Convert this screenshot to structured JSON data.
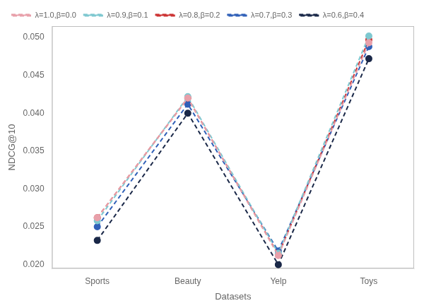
{
  "chart_data": {
    "type": "line",
    "categories": [
      "Sports",
      "Beauty",
      "Yelp",
      "Toys"
    ],
    "series": [
      {
        "name": "λ=1.0,β=0.0",
        "color": "#e8a0aa",
        "values": [
          0.0262,
          0.042,
          0.0212,
          0.0493
        ]
      },
      {
        "name": "λ=0.9,β=0.1",
        "color": "#7ec8d0",
        "values": [
          0.0258,
          0.0422,
          0.0215,
          0.0502
        ]
      },
      {
        "name": "λ=0.8,β=0.2",
        "color": "#cc3333",
        "values": [
          0.0262,
          0.042,
          0.0213,
          0.0497
        ]
      },
      {
        "name": "λ=0.7,β=0.3",
        "color": "#3060b8",
        "values": [
          0.025,
          0.0412,
          0.0218,
          0.0488
        ]
      },
      {
        "name": "λ=0.6,β=0.4",
        "color": "#1a2848",
        "values": [
          0.0232,
          0.04,
          0.02,
          0.0472
        ]
      }
    ],
    "xlabel": "Datasets",
    "ylabel": "NDCG@10",
    "ylim": [
      0.0195,
      0.0515
    ],
    "yticks": [
      {
        "value": 0.02,
        "label": "0.020"
      },
      0.025,
      {
        "value": 0.03,
        "label": "0.030"
      },
      0.035,
      {
        "value": 0.04,
        "label": "0.040"
      },
      0.045,
      {
        "value": 0.05,
        "label": "0.050"
      }
    ],
    "marker": "circle",
    "line_style": "dashed",
    "legend": "upper left",
    "grid": false
  }
}
